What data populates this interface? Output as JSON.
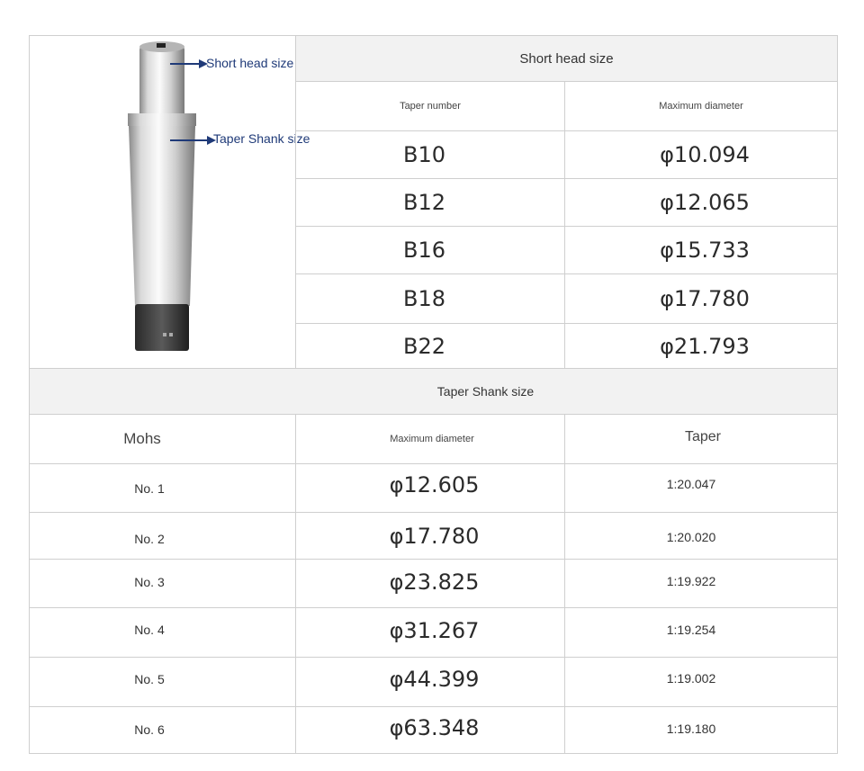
{
  "short_head": {
    "title": "Short head size",
    "headers": {
      "taper_number": "Taper number",
      "max_diameter": "Maximum diameter"
    },
    "rows": [
      {
        "taper": "B10",
        "diameter": "φ10.094"
      },
      {
        "taper": "B12",
        "diameter": "φ12.065"
      },
      {
        "taper": "B16",
        "diameter": "φ15.733"
      },
      {
        "taper": "B18",
        "diameter": "φ17.780"
      },
      {
        "taper": "B22",
        "diameter": "φ21.793"
      }
    ]
  },
  "taper_shank": {
    "title": "Taper Shank size",
    "headers": {
      "mohs": "Mohs",
      "max_diameter": "Maximum diameter",
      "taper": "Taper"
    },
    "rows": [
      {
        "mohs": "No. 1",
        "diameter": "φ12.605",
        "taper": "1:20.047"
      },
      {
        "mohs": "No. 2",
        "diameter": "φ17.780",
        "taper": "1:20.020"
      },
      {
        "mohs": "No. 3",
        "diameter": "φ23.825",
        "taper": "1:19.922"
      },
      {
        "mohs": "No. 4",
        "diameter": "φ31.267",
        "taper": "1:19.254"
      },
      {
        "mohs": "No. 5",
        "diameter": "φ44.399",
        "taper": "1:19.002"
      },
      {
        "mohs": "No. 6",
        "diameter": "φ63.348",
        "taper": "1:19.180"
      }
    ]
  },
  "photo": {
    "callout_head": "Short head size",
    "callout_shank": "Taper Shank size",
    "arrow_color": "#1f3a78"
  }
}
